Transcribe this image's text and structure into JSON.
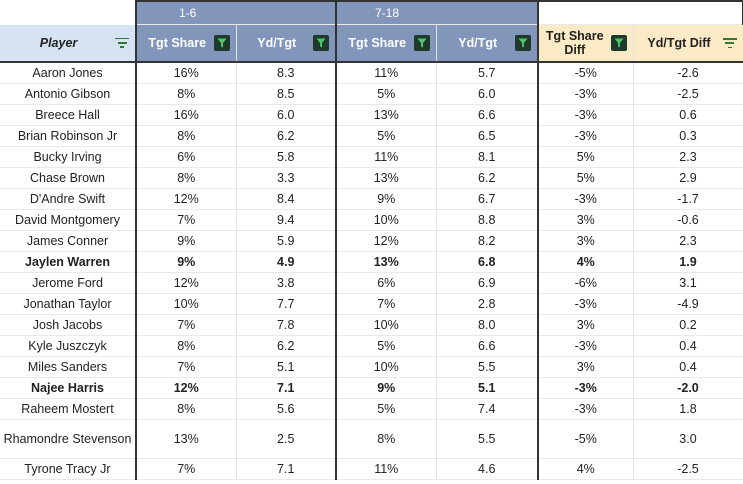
{
  "groups": {
    "g1": "1-6",
    "g2": "7-18"
  },
  "headers": {
    "player": "Player",
    "tgt_share_1": "Tgt Share",
    "yd_tgt_1": "Yd/Tgt",
    "tgt_share_2": "Tgt Share",
    "yd_tgt_2": "Yd/Tgt",
    "tgt_share_diff": "Tgt Share Diff",
    "yd_tgt_diff": "Yd/Tgt Diff"
  },
  "icons": {
    "filter_filled": "filter-icon",
    "filter_lines": "filter-lines-icon"
  },
  "colors": {
    "header_blue": "#8196ba",
    "player_header": "#d5e3f3",
    "diff_header": "#fbeac6",
    "filter_dark": "#1f3a2a",
    "filter_green": "#2a7a3a"
  },
  "rows": [
    {
      "player": "Aaron Jones",
      "ts1": "16%",
      "yt1": "8.3",
      "ts2": "11%",
      "yt2": "5.7",
      "tsd": "-5%",
      "ytd": "-2.6",
      "bold": false
    },
    {
      "player": "Antonio Gibson",
      "ts1": "8%",
      "yt1": "8.5",
      "ts2": "5%",
      "yt2": "6.0",
      "tsd": "-3%",
      "ytd": "-2.5",
      "bold": false
    },
    {
      "player": "Breece Hall",
      "ts1": "16%",
      "yt1": "6.0",
      "ts2": "13%",
      "yt2": "6.6",
      "tsd": "-3%",
      "ytd": "0.6",
      "bold": false
    },
    {
      "player": "Brian Robinson Jr",
      "ts1": "8%",
      "yt1": "6.2",
      "ts2": "5%",
      "yt2": "6.5",
      "tsd": "-3%",
      "ytd": "0.3",
      "bold": false
    },
    {
      "player": "Bucky Irving",
      "ts1": "6%",
      "yt1": "5.8",
      "ts2": "11%",
      "yt2": "8.1",
      "tsd": "5%",
      "ytd": "2.3",
      "bold": false
    },
    {
      "player": "Chase Brown",
      "ts1": "8%",
      "yt1": "3.3",
      "ts2": "13%",
      "yt2": "6.2",
      "tsd": "5%",
      "ytd": "2.9",
      "bold": false
    },
    {
      "player": "D'Andre Swift",
      "ts1": "12%",
      "yt1": "8.4",
      "ts2": "9%",
      "yt2": "6.7",
      "tsd": "-3%",
      "ytd": "-1.7",
      "bold": false
    },
    {
      "player": "David Montgomery",
      "ts1": "7%",
      "yt1": "9.4",
      "ts2": "10%",
      "yt2": "8.8",
      "tsd": "3%",
      "ytd": "-0.6",
      "bold": false
    },
    {
      "player": "James Conner",
      "ts1": "9%",
      "yt1": "5.9",
      "ts2": "12%",
      "yt2": "8.2",
      "tsd": "3%",
      "ytd": "2.3",
      "bold": false
    },
    {
      "player": "Jaylen Warren",
      "ts1": "9%",
      "yt1": "4.9",
      "ts2": "13%",
      "yt2": "6.8",
      "tsd": "4%",
      "ytd": "1.9",
      "bold": true
    },
    {
      "player": "Jerome Ford",
      "ts1": "12%",
      "yt1": "3.8",
      "ts2": "6%",
      "yt2": "6.9",
      "tsd": "-6%",
      "ytd": "3.1",
      "bold": false
    },
    {
      "player": "Jonathan Taylor",
      "ts1": "10%",
      "yt1": "7.7",
      "ts2": "7%",
      "yt2": "2.8",
      "tsd": "-3%",
      "ytd": "-4.9",
      "bold": false
    },
    {
      "player": "Josh Jacobs",
      "ts1": "7%",
      "yt1": "7.8",
      "ts2": "10%",
      "yt2": "8.0",
      "tsd": "3%",
      "ytd": "0.2",
      "bold": false
    },
    {
      "player": "Kyle Juszczyk",
      "ts1": "8%",
      "yt1": "6.2",
      "ts2": "5%",
      "yt2": "6.6",
      "tsd": "-3%",
      "ytd": "0.4",
      "bold": false
    },
    {
      "player": "Miles Sanders",
      "ts1": "7%",
      "yt1": "5.1",
      "ts2": "10%",
      "yt2": "5.5",
      "tsd": "3%",
      "ytd": "0.4",
      "bold": false
    },
    {
      "player": "Najee Harris",
      "ts1": "12%",
      "yt1": "7.1",
      "ts2": "9%",
      "yt2": "5.1",
      "tsd": "-3%",
      "ytd": "-2.0",
      "bold": true
    },
    {
      "player": "Raheem Mostert",
      "ts1": "8%",
      "yt1": "5.6",
      "ts2": "5%",
      "yt2": "7.4",
      "tsd": "-3%",
      "ytd": "1.8",
      "bold": false
    },
    {
      "player": "Rhamondre Stevenson",
      "ts1": "13%",
      "yt1": "2.5",
      "ts2": "8%",
      "yt2": "5.5",
      "tsd": "-5%",
      "ytd": "3.0",
      "bold": false,
      "tall": true
    },
    {
      "player": "Tyrone Tracy Jr",
      "ts1": "7%",
      "yt1": "7.1",
      "ts2": "11%",
      "yt2": "4.6",
      "tsd": "4%",
      "ytd": "-2.5",
      "bold": false
    }
  ]
}
